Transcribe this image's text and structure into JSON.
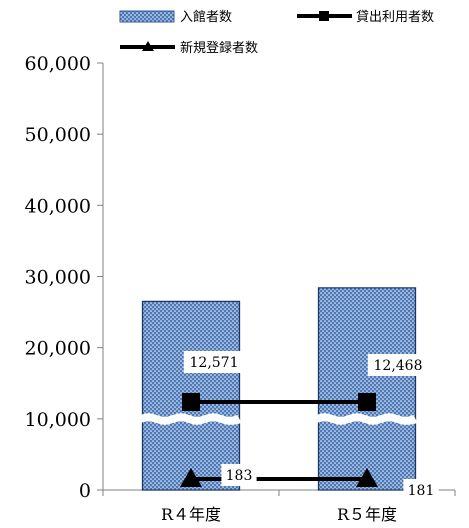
{
  "chart_data": {
    "type": "bar",
    "categories": [
      "R４年度",
      "R５年度"
    ],
    "ylim": [
      0,
      60000
    ],
    "yticks": [
      "0",
      "10,000",
      "20,000",
      "30,000",
      "40,000",
      "50,000",
      "60,000"
    ],
    "axis_break": "bar values axis break between approximately 5,000 and 10,000",
    "legend_position": "top",
    "series": [
      {
        "name": "入館者数",
        "kind": "bar",
        "values": [
          26500,
          28400
        ],
        "color": "#4a78b8"
      },
      {
        "name": "貸出利用者数",
        "kind": "line",
        "marker": "square",
        "values": [
          12571,
          12468
        ],
        "labels": [
          "12,571",
          "12,468"
        ],
        "color": "#000000"
      },
      {
        "name": "新規登録者数",
        "kind": "line",
        "marker": "triangle",
        "values": [
          183,
          181
        ],
        "labels": [
          "183",
          "181"
        ],
        "color": "#000000"
      }
    ]
  }
}
